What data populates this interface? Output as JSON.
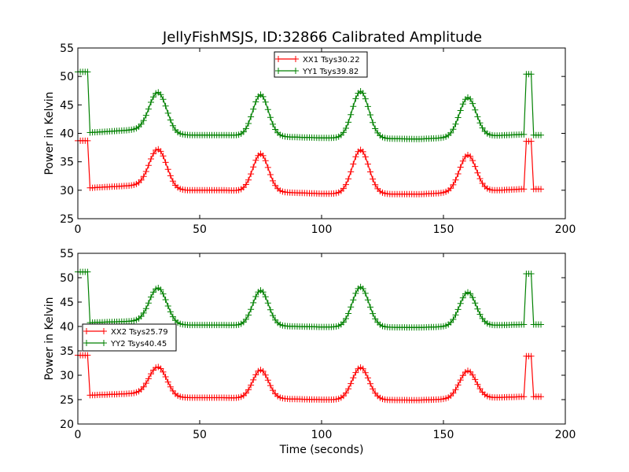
{
  "chart_data": {
    "type": "line",
    "title": "JellyFishMSJS, ID:32866 Calibrated Amplitude",
    "xlabel": "Time (seconds)",
    "grid": false,
    "panels": [
      {
        "ylabel": "Power in Kelvin",
        "xlim": [
          0,
          200
        ],
        "ylim": [
          25,
          55
        ],
        "xticks": [
          0,
          50,
          100,
          150,
          200
        ],
        "yticks": [
          25,
          30,
          35,
          40,
          45,
          50,
          55
        ],
        "legend_placement": "upper-center",
        "series": [
          {
            "name": "XX1 Tsys30.22",
            "color": "#ff0000",
            "marker": "plus",
            "baseline": [
              [
                0,
                30.3
              ],
              [
                30,
                31.0
              ],
              [
                40,
                30.0
              ],
              [
                60,
                30.0
              ],
              [
                100,
                29.4
              ],
              [
                140,
                29.3
              ],
              [
                182,
                30.2
              ]
            ],
            "peaks": [
              [
                33,
                37.2,
                3.5
              ],
              [
                75,
                36.4,
                3.2
              ],
              [
                116,
                37.1,
                3.4
              ],
              [
                160,
                36.2,
                3.4
              ]
            ],
            "steps": [
              [
                0,
                4,
                38.7
              ],
              [
                184,
                186,
                38.6
              ]
            ],
            "tail": [
              [
                186,
                190,
                30.2
              ]
            ]
          },
          {
            "name": "YY1 Tsys39.82",
            "color": "#008000",
            "marker": "plus",
            "baseline": [
              [
                0,
                40.0
              ],
              [
                30,
                40.8
              ],
              [
                40,
                39.7
              ],
              [
                60,
                39.7
              ],
              [
                100,
                39.2
              ],
              [
                140,
                39.0
              ],
              [
                182,
                39.8
              ]
            ],
            "peaks": [
              [
                33,
                47.2,
                3.5
              ],
              [
                75,
                46.8,
                3.2
              ],
              [
                116,
                47.4,
                3.4
              ],
              [
                160,
                46.3,
                3.4
              ]
            ],
            "steps": [
              [
                0,
                4,
                50.8
              ],
              [
                184,
                186,
                50.4
              ]
            ],
            "tail": [
              [
                186,
                190,
                39.7
              ]
            ]
          }
        ]
      },
      {
        "ylabel": "Power in Kelvin",
        "xlim": [
          0,
          200
        ],
        "ylim": [
          20,
          55
        ],
        "xticks": [
          0,
          50,
          100,
          150,
          200
        ],
        "yticks": [
          20,
          25,
          30,
          35,
          40,
          45,
          50,
          55
        ],
        "legend_placement": "center-left",
        "series": [
          {
            "name": "XX2 Tsys25.79",
            "color": "#ff0000",
            "marker": "plus",
            "baseline": [
              [
                0,
                25.8
              ],
              [
                30,
                26.4
              ],
              [
                40,
                25.4
              ],
              [
                60,
                25.4
              ],
              [
                100,
                25.0
              ],
              [
                140,
                24.9
              ],
              [
                182,
                25.6
              ]
            ],
            "peaks": [
              [
                33,
                31.7,
                3.5
              ],
              [
                75,
                31.1,
                3.2
              ],
              [
                116,
                31.6,
                3.4
              ],
              [
                160,
                30.9,
                3.4
              ]
            ],
            "steps": [
              [
                0,
                4,
                34.1
              ],
              [
                184,
                186,
                33.9
              ]
            ],
            "tail": [
              [
                186,
                190,
                25.6
              ]
            ]
          },
          {
            "name": "YY2 Tsys40.45",
            "color": "#008000",
            "marker": "plus",
            "baseline": [
              [
                0,
                40.7
              ],
              [
                30,
                41.2
              ],
              [
                40,
                40.3
              ],
              [
                60,
                40.3
              ],
              [
                100,
                39.9
              ],
              [
                140,
                39.8
              ],
              [
                182,
                40.4
              ]
            ],
            "peaks": [
              [
                33,
                47.9,
                3.5
              ],
              [
                75,
                47.4,
                3.2
              ],
              [
                116,
                48.1,
                3.4
              ],
              [
                160,
                47.0,
                3.4
              ]
            ],
            "steps": [
              [
                0,
                4,
                51.2
              ],
              [
                184,
                186,
                50.8
              ]
            ],
            "tail": [
              [
                186,
                190,
                40.4
              ]
            ]
          }
        ]
      }
    ]
  }
}
